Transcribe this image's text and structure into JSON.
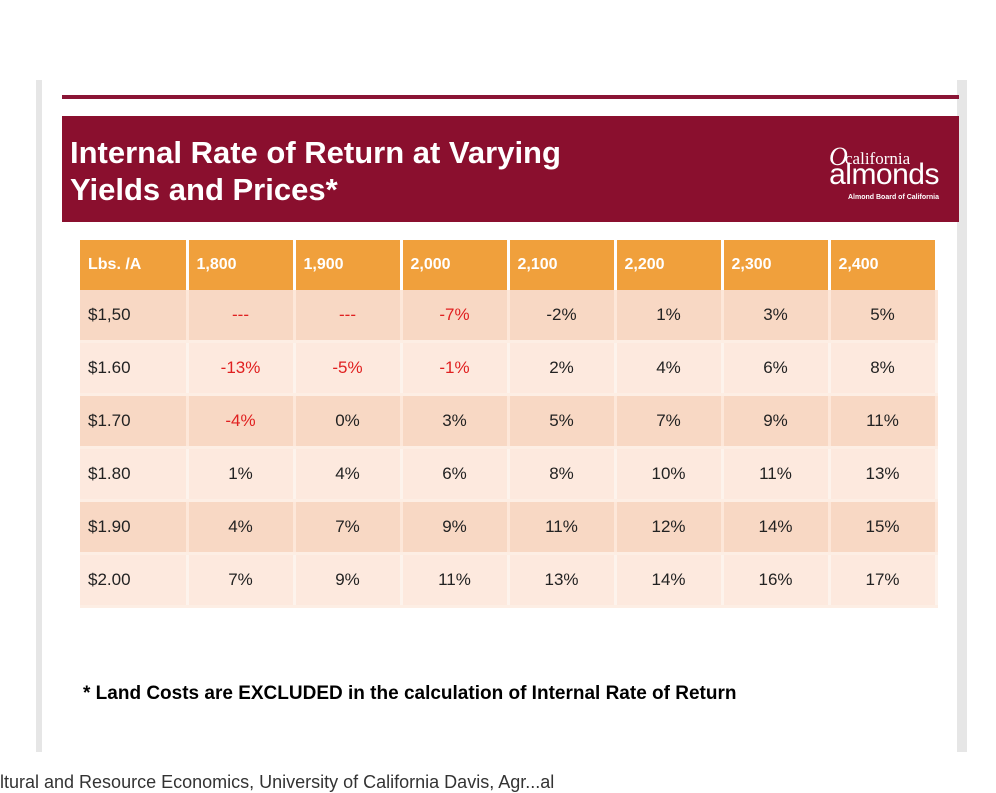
{
  "slide": {
    "title": "Internal Rate of Return at Varying\nYields and Prices*",
    "logo": {
      "mark": "O",
      "small": "california",
      "big": "almonds",
      "sub": "Almond Board of California"
    },
    "footnote": "* Land Costs are EXCLUDED in the calculation of Internal Rate of Return"
  },
  "table": {
    "header": [
      "Lbs. /A",
      "1,800",
      "1,900",
      "2,000",
      "2,100",
      "2,200",
      "2,300",
      "2,400"
    ],
    "rows": [
      {
        "price": "$1,50",
        "cells": [
          "---",
          "---",
          "-7%",
          "-2%",
          "1%",
          "3%",
          "5%"
        ]
      },
      {
        "price": "$1.60",
        "cells": [
          "-13%",
          "-5%",
          "-1%",
          "2%",
          "4%",
          "6%",
          "8%"
        ]
      },
      {
        "price": "$1.70",
        "cells": [
          "-4%",
          "0%",
          "3%",
          "5%",
          "7%",
          "9%",
          "11%"
        ]
      },
      {
        "price": "$1.80",
        "cells": [
          "1%",
          "4%",
          "6%",
          "8%",
          "10%",
          "11%",
          "13%"
        ]
      },
      {
        "price": "$1.90",
        "cells": [
          "4%",
          "7%",
          "9%",
          "11%",
          "12%",
          "14%",
          "15%"
        ]
      },
      {
        "price": "$2.00",
        "cells": [
          "7%",
          "9%",
          "11%",
          "13%",
          "14%",
          "16%",
          "17%"
        ]
      }
    ],
    "red_cells": [
      [
        0,
        0
      ],
      [
        0,
        1
      ],
      [
        0,
        2
      ],
      [
        1,
        0
      ],
      [
        1,
        1
      ],
      [
        1,
        2
      ],
      [
        2,
        0
      ]
    ]
  },
  "caption": "ltural and Resource Economics, University of California Davis, Agr...al"
}
